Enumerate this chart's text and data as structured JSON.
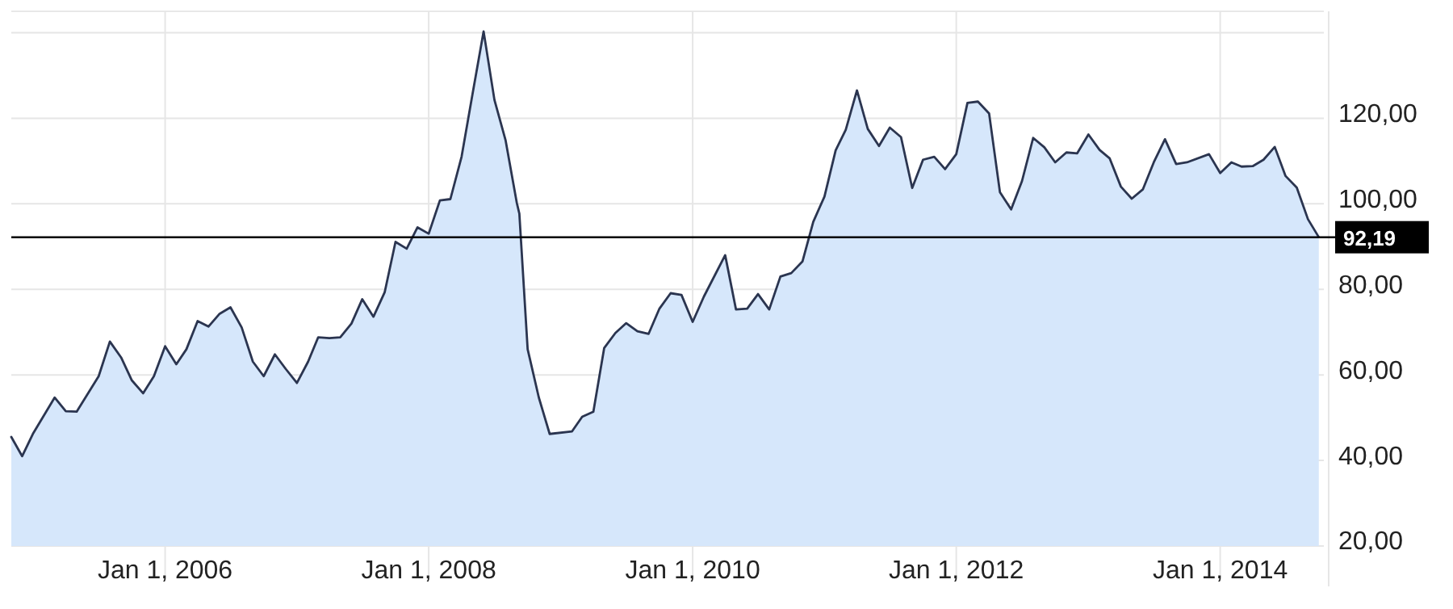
{
  "chart_data": {
    "type": "area",
    "x": [
      "2004-11",
      "2004-12",
      "2005-01",
      "2005-03",
      "2005-04",
      "2005-05",
      "2005-07",
      "2005-08",
      "2005-09",
      "2005-10",
      "2005-11",
      "2005-12",
      "2006-01",
      "2006-02",
      "2006-03",
      "2006-04",
      "2006-05",
      "2006-06",
      "2006-07",
      "2006-08",
      "2006-09",
      "2006-10",
      "2006-11",
      "2006-12",
      "2007-01",
      "2007-02",
      "2007-03",
      "2007-04",
      "2007-05",
      "2007-06",
      "2007-07",
      "2007-08",
      "2007-09",
      "2007-10",
      "2007-11",
      "2007-12",
      "2008-01",
      "2008-02",
      "2008-03",
      "2008-04",
      "2008-05",
      "2008-06",
      "2008-07",
      "2008-08",
      "2008-09-01",
      "2008-09-08",
      "2008-10",
      "2008-11",
      "2008-12",
      "2009-02",
      "2009-03",
      "2009-04",
      "2009-05",
      "2009-06",
      "2009-07",
      "2009-08",
      "2009-09",
      "2009-10",
      "2009-11",
      "2009-12",
      "2010-01",
      "2010-02",
      "2010-04",
      "2010-05",
      "2010-06",
      "2010-07",
      "2010-08",
      "2010-09",
      "2010-10",
      "2010-11",
      "2010-12",
      "2011-01",
      "2011-02",
      "2011-03",
      "2011-04",
      "2011-05",
      "2011-06",
      "2011-07",
      "2011-08",
      "2011-09",
      "2011-10",
      "2011-11",
      "2011-12",
      "2012-01",
      "2012-02",
      "2012-03",
      "2012-04",
      "2012-05",
      "2012-06",
      "2012-07",
      "2012-08",
      "2012-09",
      "2012-10",
      "2012-11",
      "2012-12",
      "2013-01",
      "2013-02",
      "2013-03",
      "2013-04",
      "2013-05",
      "2013-06",
      "2013-07",
      "2013-08",
      "2013-09",
      "2013-10",
      "2013-12",
      "2014-01",
      "2014-02",
      "2014-03",
      "2014-04",
      "2014-05",
      "2014-06",
      "2014-07",
      "2014-08",
      "2014-09",
      "2014-10"
    ],
    "series": [
      {
        "color": "#d6e7fb",
        "values": [
          45.5,
          41.0,
          46.4,
          54.7,
          51.5,
          51.4,
          59.7,
          67.8,
          64.1,
          58.7,
          55.7,
          59.7,
          66.7,
          62.5,
          66.0,
          72.6,
          71.3,
          74.3,
          75.8,
          71.1,
          63.1,
          59.7,
          64.8,
          61.4,
          58.1,
          63.1,
          68.8,
          68.6,
          68.8,
          72.0,
          77.7,
          73.6,
          79.3,
          91.1,
          89.5,
          94.5,
          93.0,
          100.8,
          101.1,
          111.0,
          125.5,
          140.3,
          124.3,
          114.8,
          100.2,
          97.7,
          66.0,
          54.7,
          46.2,
          46.8,
          50.2,
          51.4,
          66.3,
          69.8,
          72.1,
          70.2,
          69.6,
          75.5,
          79.1,
          78.7,
          72.4,
          78.3,
          88.0,
          75.3,
          75.5,
          78.9,
          75.3,
          83.0,
          83.8,
          86.5,
          95.8,
          101.7,
          112.5,
          117.3,
          126.5,
          117.5,
          113.5,
          117.8,
          115.6,
          103.7,
          110.3,
          111.0,
          108.1,
          111.6,
          123.6,
          123.9,
          121.1,
          102.7,
          98.7,
          105.3,
          115.4,
          113.2,
          109.7,
          112.0,
          111.8,
          116.2,
          112.6,
          110.6,
          104.0,
          101.2,
          103.4,
          109.7,
          115.1,
          109.3,
          109.7,
          111.6,
          107.2,
          109.7,
          108.7,
          108.8,
          110.3,
          113.3,
          106.5,
          103.8,
          96.4,
          92.2
        ]
      }
    ],
    "xlim": [
      "2004-11",
      "2014-10-15"
    ],
    "xticks": [
      {
        "value": "2006-01-01",
        "label": "Jan 1, 2006"
      },
      {
        "value": "2008-01-01",
        "label": "Jan 1, 2008"
      },
      {
        "value": "2010-01-01",
        "label": "Jan 1, 2010"
      },
      {
        "value": "2012-01-01",
        "label": "Jan 1, 2012"
      },
      {
        "value": "2014-01-01",
        "label": "Jan 1, 2014"
      }
    ],
    "ylim": [
      20,
      145
    ],
    "yticks": [
      {
        "value": 20,
        "label": "20,00"
      },
      {
        "value": 40,
        "label": "40,00"
      },
      {
        "value": 60,
        "label": "60,00"
      },
      {
        "value": 80,
        "label": "80,00"
      },
      {
        "value": 100,
        "label": "100,00"
      },
      {
        "value": 120,
        "label": "120,00"
      },
      {
        "value": 140,
        "label": null
      }
    ],
    "ref_lines": [
      {
        "axis": "y",
        "value": 92.19,
        "label": "92,19",
        "color": "#000000"
      }
    ],
    "grid": true
  }
}
